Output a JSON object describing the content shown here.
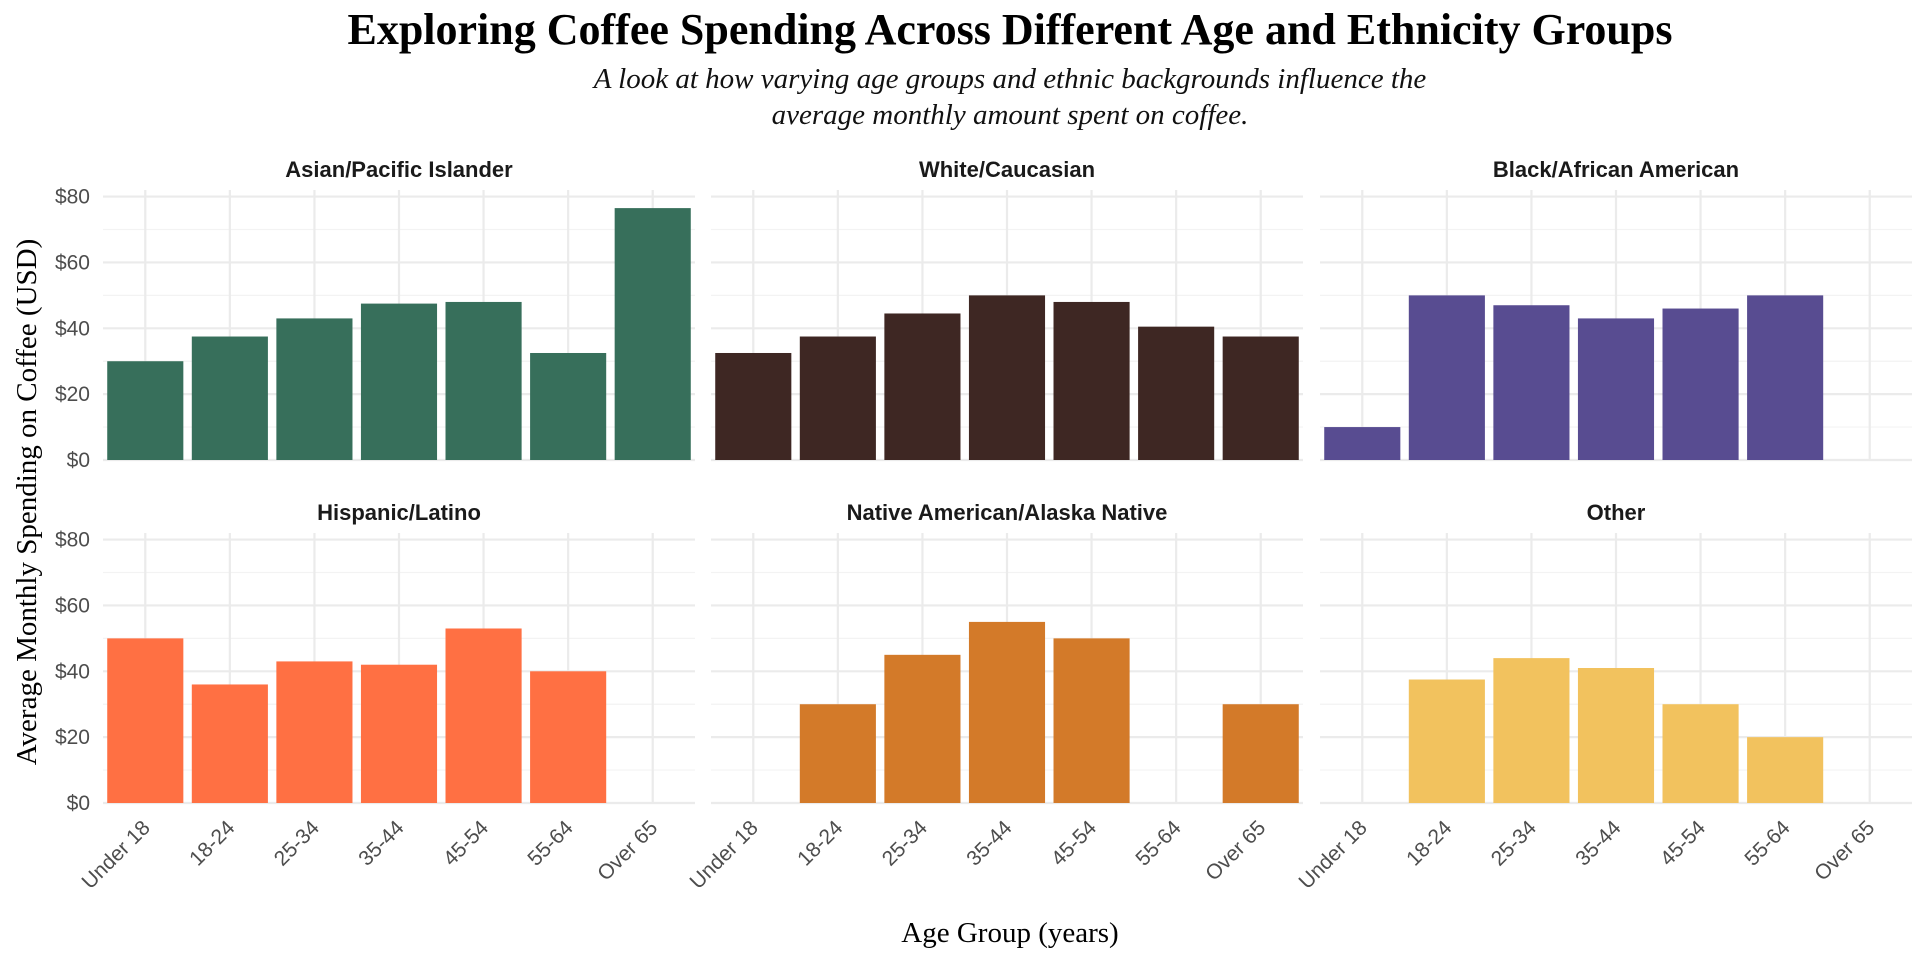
{
  "chart_data": {
    "type": "bar",
    "title": "Exploring Coffee Spending Across Different Age and Ethnicity Groups",
    "subtitle_lines": [
      "A look at how varying age groups and ethnic backgrounds influence the",
      "average monthly amount spent on coffee."
    ],
    "xlabel": "Age Group (years)",
    "ylabel": "Average Monthly Spending on Coffee (USD)",
    "categories": [
      "Under 18",
      "18-24",
      "25-34",
      "35-44",
      "45-54",
      "55-64",
      "Over 65"
    ],
    "ylim": [
      0,
      82
    ],
    "yticks": [
      0,
      20,
      40,
      60,
      80
    ],
    "ytick_labels": [
      "$0",
      "$20",
      "$40",
      "$60",
      "$80"
    ],
    "grid": true,
    "facets": [
      {
        "name": "Asian/Pacific Islander",
        "color": "#376F5B",
        "values": [
          30,
          37.5,
          43,
          47.5,
          48,
          32.5,
          76.5
        ]
      },
      {
        "name": "White/Caucasian",
        "color": "#3E2723",
        "values": [
          32.5,
          37.5,
          44.5,
          50,
          48,
          40.5,
          37.5
        ]
      },
      {
        "name": "Black/African American",
        "color": "#584C91",
        "values": [
          10,
          50,
          47,
          43,
          46,
          50,
          null
        ]
      },
      {
        "name": "Hispanic/Latino",
        "color": "#FF7043",
        "values": [
          50,
          36,
          43,
          42,
          53,
          40,
          null
        ]
      },
      {
        "name": "Native American/Alaska Native",
        "color": "#D37A29",
        "values": [
          null,
          30,
          45,
          55,
          50,
          null,
          30
        ]
      },
      {
        "name": "Other",
        "color": "#F2C25E",
        "values": [
          null,
          37.5,
          44,
          41,
          30,
          20,
          null
        ]
      }
    ]
  }
}
